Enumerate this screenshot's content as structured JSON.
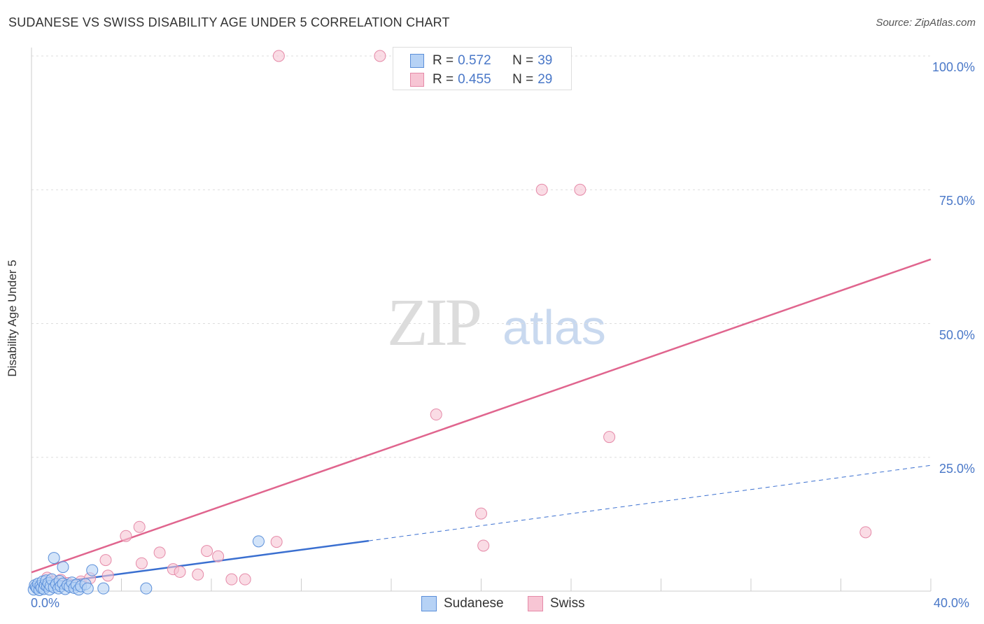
{
  "header": {
    "title": "SUDANESE VS SWISS DISABILITY AGE UNDER 5 CORRELATION CHART",
    "source": "Source: ZipAtlas.com"
  },
  "watermark": {
    "zip": "ZIP",
    "atlas": "atlas"
  },
  "legend": {
    "rows": [
      {
        "r_label": "R =",
        "r_value": "0.572",
        "n_label": "N =",
        "n_value": "39"
      },
      {
        "r_label": "R =",
        "r_value": "0.455",
        "n_label": "N =",
        "n_value": "29"
      }
    ]
  },
  "bottom_legend": {
    "sudanese": "Sudanese",
    "swiss": "Swiss"
  },
  "colors": {
    "sudanese_fill": "#b6d2f5",
    "sudanese_stroke": "#5b8fd9",
    "sudanese_line": "#3a6fd0",
    "swiss_fill": "#f7c5d4",
    "swiss_stroke": "#e58aa8",
    "swiss_line": "#e0658e",
    "tick_text": "#4a78c8",
    "grid": "#dddddd"
  },
  "chart_data": {
    "type": "scatter",
    "title": "SUDANESE VS SWISS DISABILITY AGE UNDER 5 CORRELATION CHART",
    "xlabel": "",
    "ylabel": "Disability Age Under 5",
    "xlim": [
      0,
      40
    ],
    "ylim": [
      0,
      100
    ],
    "x_tick_labels": [
      "0.0%",
      "40.0%"
    ],
    "y_ticks": [
      25,
      50,
      75,
      100
    ],
    "y_tick_labels": [
      "25.0%",
      "50.0%",
      "75.0%",
      "100.0%"
    ],
    "series": [
      {
        "name": "Sudanese",
        "points": [
          [
            0.1,
            0.3
          ],
          [
            0.15,
            1.1
          ],
          [
            0.2,
            0.8
          ],
          [
            0.25,
            0.5
          ],
          [
            0.3,
            1.4
          ],
          [
            0.35,
            0.2
          ],
          [
            0.4,
            1.0
          ],
          [
            0.45,
            0.6
          ],
          [
            0.5,
            1.8
          ],
          [
            0.55,
            0.4
          ],
          [
            0.6,
            1.2
          ],
          [
            0.65,
            2.0
          ],
          [
            0.7,
            0.9
          ],
          [
            0.75,
            1.5
          ],
          [
            0.8,
            0.3
          ],
          [
            0.85,
            1.0
          ],
          [
            0.9,
            2.2
          ],
          [
            1.0,
            0.7
          ],
          [
            1.1,
            1.3
          ],
          [
            1.2,
            0.5
          ],
          [
            1.25,
            1.9
          ],
          [
            1.3,
            0.9
          ],
          [
            1.4,
            1.4
          ],
          [
            1.5,
            0.4
          ],
          [
            1.6,
            1.1
          ],
          [
            1.7,
            0.8
          ],
          [
            1.8,
            1.6
          ],
          [
            1.9,
            0.6
          ],
          [
            2.0,
            1.2
          ],
          [
            2.1,
            0.3
          ],
          [
            2.2,
            0.9
          ],
          [
            2.4,
            1.3
          ],
          [
            2.5,
            0.5
          ],
          [
            1.0,
            6.2
          ],
          [
            1.4,
            4.5
          ],
          [
            2.7,
            3.9
          ],
          [
            3.2,
            0.5
          ],
          [
            5.1,
            0.5
          ],
          [
            10.1,
            9.3
          ]
        ],
        "trend": {
          "x": [
            0,
            15
          ],
          "y": [
            1.0,
            9.4
          ],
          "solid_to_x": 15
        },
        "trend_extension": {
          "x": [
            15,
            40
          ],
          "y": [
            9.4,
            23.5
          ],
          "style": "dashed"
        }
      },
      {
        "name": "Swiss",
        "points": [
          [
            0.7,
            2.5
          ],
          [
            1.0,
            1.8
          ],
          [
            1.3,
            2.1
          ],
          [
            1.6,
            1.5
          ],
          [
            2.2,
            1.8
          ],
          [
            2.6,
            2.4
          ],
          [
            3.4,
            2.9
          ],
          [
            3.3,
            5.8
          ],
          [
            4.2,
            10.3
          ],
          [
            4.8,
            12.0
          ],
          [
            4.9,
            5.2
          ],
          [
            5.7,
            7.2
          ],
          [
            6.3,
            4.1
          ],
          [
            6.6,
            3.6
          ],
          [
            7.4,
            3.1
          ],
          [
            7.8,
            7.5
          ],
          [
            8.3,
            6.5
          ],
          [
            8.9,
            2.2
          ],
          [
            9.5,
            2.2
          ],
          [
            10.9,
            9.2
          ],
          [
            11.0,
            100
          ],
          [
            15.5,
            100
          ],
          [
            18.0,
            33.0
          ],
          [
            20.0,
            14.5
          ],
          [
            20.1,
            8.5
          ],
          [
            22.7,
            75.0
          ],
          [
            24.4,
            75.0
          ],
          [
            25.7,
            28.8
          ],
          [
            37.1,
            11.0
          ]
        ],
        "trend": {
          "x": [
            0,
            40
          ],
          "y": [
            3.5,
            62.0
          ]
        }
      }
    ]
  }
}
